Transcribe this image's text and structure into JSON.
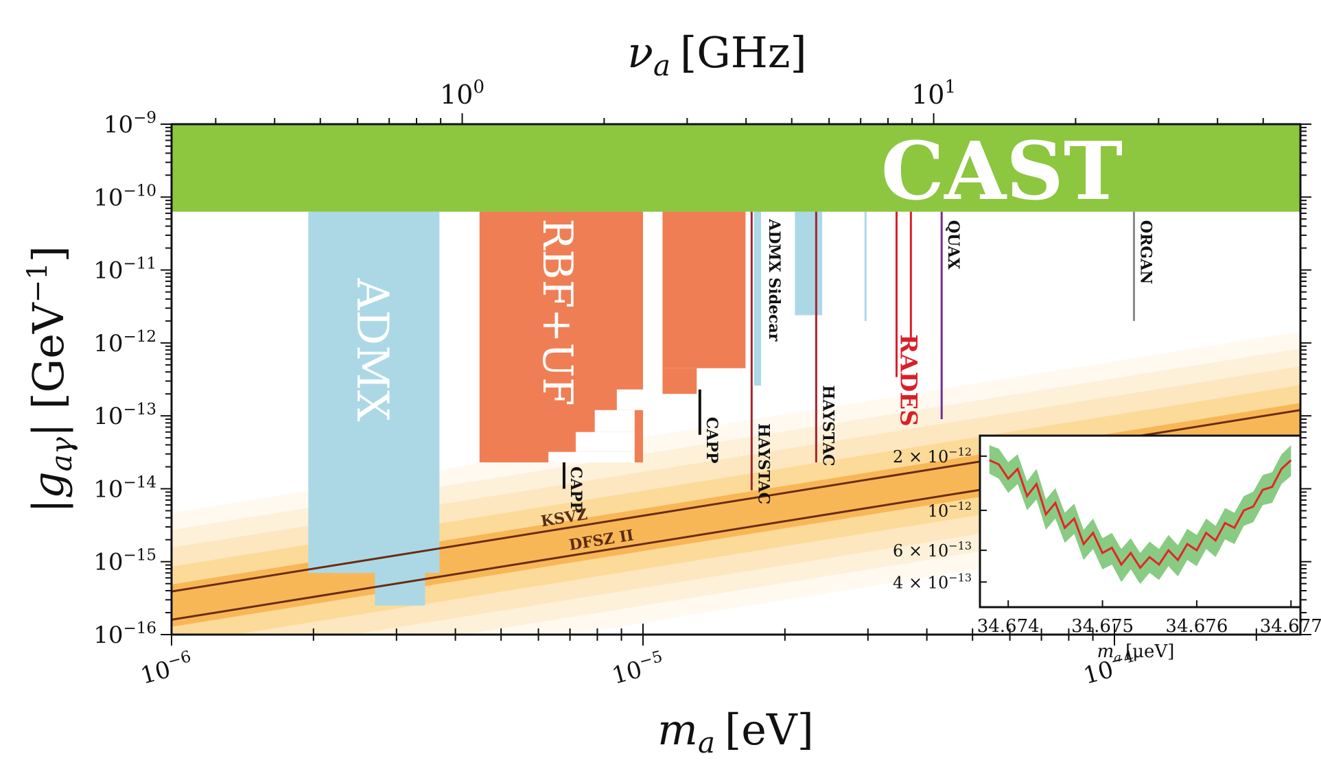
{
  "chart_data": [
    {
      "type": "area",
      "xlabel_main": "m",
      "xlabel_sub": "a",
      "xlabel_unit": "[eV]",
      "ylabel_main": "|g",
      "ylabel_sub": "aγ",
      "ylabel_unit": "| [GeV",
      "ylabel_exp": "−1",
      "ylabel_close": "]",
      "top_axis_main": "ν",
      "top_axis_sub": "a",
      "top_axis_unit": "[GHz]",
      "x_scale": "log",
      "y_scale": "log",
      "xlim": [
        1e-06,
        0.000248
      ],
      "ylim": [
        1e-16,
        1e-09
      ],
      "x_ticks": [
        {
          "value": 1e-06,
          "base": "10",
          "exp": "−6"
        },
        {
          "value": 1e-05,
          "base": "10",
          "exp": "−5"
        },
        {
          "value": 0.0001,
          "base": "10",
          "exp": "−4"
        }
      ],
      "y_ticks": [
        {
          "value": 1e-09,
          "base": "10",
          "exp": "−9"
        },
        {
          "value": 1e-10,
          "base": "10",
          "exp": "−10"
        },
        {
          "value": 1e-11,
          "base": "10",
          "exp": "−11"
        },
        {
          "value": 1e-12,
          "base": "10",
          "exp": "−12"
        },
        {
          "value": 1e-13,
          "base": "10",
          "exp": "−13"
        },
        {
          "value": 1e-14,
          "base": "10",
          "exp": "−14"
        },
        {
          "value": 1e-15,
          "base": "10",
          "exp": "−15"
        },
        {
          "value": 1e-16,
          "base": "10",
          "exp": "−16"
        }
      ],
      "top_ticks": [
        {
          "value_ghz": 1,
          "base": "10",
          "exp": "0"
        },
        {
          "value_ghz": 10,
          "base": "10",
          "exp": "1"
        }
      ],
      "ghz_per_ev": 241799,
      "colors": {
        "cast": "#8dc63f",
        "admx": "#acd8e6",
        "rbf": "#f07e54",
        "band_core": "#f7b04a",
        "haystac": "#a3242f",
        "rades": "#d8202a",
        "quax": "#7a2b8b",
        "organ": "#8a8a8a",
        "capp": "#111111",
        "model_line": "#6a2c12",
        "label_dark": "#5a2a10"
      },
      "regions": [
        {
          "name": "CAST",
          "label": "CAST",
          "x": [
            1e-06,
            0.000248
          ],
          "y_low": 6.3e-11,
          "y_high": 1e-09
        },
        {
          "name": "ADMX",
          "label": "ADMX",
          "x": [
            1.95e-06,
            3.7e-06
          ],
          "y_low": 7e-16,
          "y_high": 6.3e-11
        },
        {
          "name": "ADMX-lower",
          "label": "",
          "x": [
            2.7e-06,
            3.45e-06
          ],
          "y_low": 2.5e-16,
          "y_high": 1.3e-15
        },
        {
          "name": "RBF+UF",
          "label": "RBF+UF",
          "x": [
            4.5e-06,
            1e-05
          ],
          "y_low": 2.3e-14,
          "y_high": 6.3e-11
        },
        {
          "name": "RBF+UF-right",
          "label": "",
          "x": [
            1.1e-05,
            1.65e-05
          ],
          "y_low": 4.5e-13,
          "y_high": 6.3e-11
        },
        {
          "name": "ADMX-Sidecar",
          "label": "ADMX Sidecar",
          "x": [
            1.72e-05,
            1.78e-05
          ],
          "y_low": 2.6e-13,
          "y_high": 6.3e-11
        },
        {
          "name": "ADMX-high",
          "label": "",
          "x": [
            2.1e-05,
            2.4e-05
          ],
          "y_low": 2.4e-12,
          "y_high": 6.3e-11
        },
        {
          "name": "ADMX-thin",
          "label": "",
          "x": [
            2.95e-05,
            2.98e-05
          ],
          "y_low": 2e-12,
          "y_high": 6.3e-11
        }
      ],
      "lines": [
        {
          "name": "CAPP",
          "label": "CAPP",
          "x": 6.8e-06,
          "y_low": 1e-14,
          "y_high": 2.3e-14,
          "label_y": 2.3e-14
        },
        {
          "name": "CAPP-2",
          "label": "CAPP",
          "x": 1.32e-05,
          "y_low": 5.5e-14,
          "y_high": 2.3e-13,
          "label_y": 1.1e-13
        },
        {
          "name": "HAYSTAC",
          "label": "HAYSTAC",
          "x": 1.7e-05,
          "y_low": 9.5e-15,
          "y_high": 6.3e-11,
          "label_y": 9e-14
        },
        {
          "name": "HAYSTAC-2",
          "label": "HAYSTAC",
          "x": 2.33e-05,
          "y_low": 2.3e-14,
          "y_high": 6.3e-11,
          "label_y": 3e-13
        },
        {
          "name": "RADES",
          "label": "RADES",
          "x": 3.45e-05,
          "y_low": 3.4e-13,
          "y_high": 6.3e-11,
          "label_y": 1.5e-12
        },
        {
          "name": "RADES-2",
          "label": "",
          "x": 3.7e-05,
          "y_low": 1.1e-12,
          "y_high": 6.3e-11
        },
        {
          "name": "QUAX",
          "label": "QUAX",
          "x": 4.3e-05,
          "y_low": 9e-14,
          "y_high": 6.3e-11,
          "label_y": 5.5e-11
        },
        {
          "name": "ORGAN",
          "label": "ORGAN",
          "x": 0.00011,
          "y_low": 2e-12,
          "y_high": 6.3e-11,
          "label_y": 5.5e-11
        }
      ],
      "models": [
        {
          "name": "KSVZ",
          "label": "KSVZ",
          "x": [
            1e-06,
            0.000248
          ],
          "y": [
            3.9e-16,
            1.2e-13
          ],
          "label_x": 6.1e-06
        },
        {
          "name": "DFSZ II",
          "label": "DFSZ II",
          "x": [
            1e-06,
            0.000248
          ],
          "y": [
            1.6e-16,
            4.9e-14
          ],
          "label_x": 7e-06
        }
      ],
      "inset": {
        "xlabel_main": "m",
        "xlabel_sub": "a",
        "xlabel_unit": "[μeV]",
        "xlim": [
          34.6737,
          34.6771
        ],
        "ylim": [
          2.9e-13,
          2.6e-12
        ],
        "x_ticks": [
          {
            "value": 34.674,
            "label": "34.674"
          },
          {
            "value": 34.675,
            "label": "34.675"
          },
          {
            "value": 34.676,
            "label": "34.676"
          },
          {
            "value": 34.677,
            "label": "34.677"
          }
        ],
        "y_ticks": [
          {
            "value": 2e-12,
            "label": "2 × 10",
            "exp": "−12"
          },
          {
            "value": 1e-12,
            "label": "10",
            "exp": "−12"
          },
          {
            "value": 6e-13,
            "label": "6 × 10",
            "exp": "−13"
          },
          {
            "value": 4e-13,
            "label": "4 × 10",
            "exp": "−13"
          }
        ],
        "series": [
          {
            "name": "limit",
            "x": [
              34.6738,
              34.6739,
              34.674,
              34.6741,
              34.6742,
              34.6743,
              34.6744,
              34.6745,
              34.6746,
              34.6747,
              34.6748,
              34.6749,
              34.675,
              34.6751,
              34.6752,
              34.6753,
              34.6754,
              34.6755,
              34.6756,
              34.6757,
              34.6758,
              34.6759,
              34.676,
              34.6761,
              34.6762,
              34.6763,
              34.6764,
              34.6765,
              34.6766,
              34.6767,
              34.6768,
              34.6769,
              34.677
            ],
            "y": [
              1.9e-12,
              1.8e-12,
              1.5e-12,
              1.7e-12,
              1.2e-12,
              1.4e-12,
              9.5e-13,
              1.1e-12,
              8e-13,
              9e-13,
              6.5e-13,
              7.5e-13,
              5.8e-13,
              6.2e-13,
              5e-13,
              5.8e-13,
              4.8e-13,
              5.5e-13,
              5e-13,
              6e-13,
              5.3e-13,
              6.5e-13,
              6e-13,
              7.5e-13,
              6.8e-13,
              8.5e-13,
              8e-13,
              1e-12,
              1.05e-12,
              1.3e-12,
              1.35e-12,
              1.7e-12,
              1.9e-12
            ],
            "band_low": [
              1.6e-12,
              1.5e-12,
              1.25e-12,
              1.4e-12,
              1e-12,
              1.15e-12,
              7.8e-13,
              9e-13,
              6.6e-13,
              7.4e-13,
              5.3e-13,
              6.1e-13,
              4.7e-13,
              5e-13,
              4e-13,
              4.7e-13,
              3.9e-13,
              4.5e-13,
              4.1e-13,
              4.9e-13,
              4.3e-13,
              5.3e-13,
              4.9e-13,
              6.1e-13,
              5.5e-13,
              6.9e-13,
              6.5e-13,
              8.2e-13,
              8.6e-13,
              1.07e-12,
              1.1e-12,
              1.4e-12,
              1.55e-12
            ],
            "band_high": [
              2.3e-12,
              2.2e-12,
              1.85e-12,
              2.05e-12,
              1.45e-12,
              1.7e-12,
              1.15e-12,
              1.33e-12,
              9.7e-13,
              1.09e-12,
              7.8e-13,
              9e-13,
              7e-13,
              7.5e-13,
              6.1e-13,
              7e-13,
              5.8e-13,
              6.7e-13,
              6.1e-13,
              7.3e-13,
              6.4e-13,
              7.9e-13,
              7.3e-13,
              9e-13,
              8.2e-13,
              1.03e-12,
              9.7e-13,
              1.2e-12,
              1.27e-12,
              1.57e-12,
              1.63e-12,
              2.05e-12,
              2.3e-12
            ]
          }
        ]
      }
    }
  ]
}
